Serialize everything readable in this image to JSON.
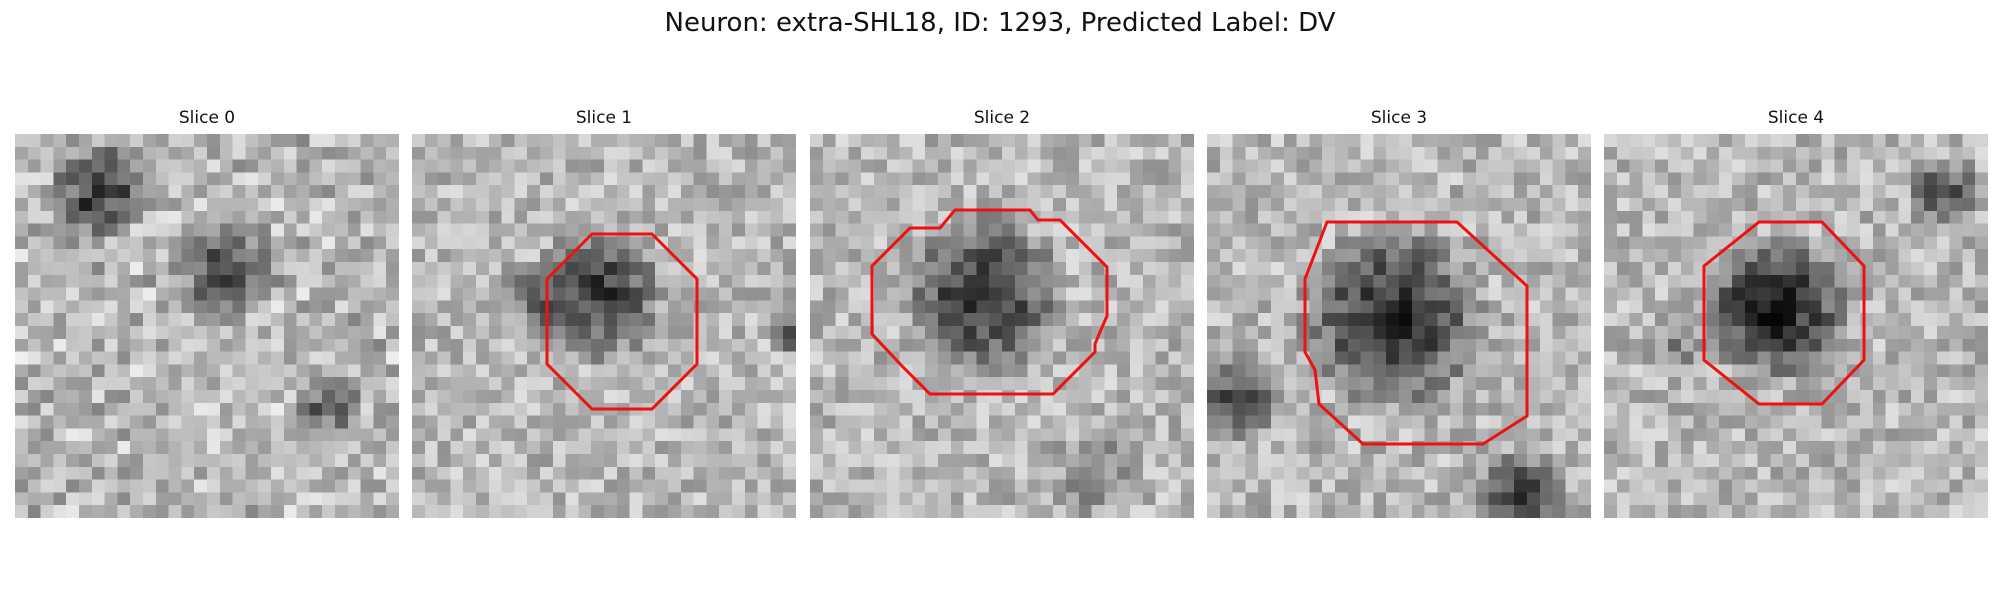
{
  "figure": {
    "title": "Neuron: extra-SHL18, ID: 1293, Predicted Label: DV"
  },
  "panels": [
    {
      "title": "Slice 0",
      "has_contour": false
    },
    {
      "title": "Slice 1",
      "has_contour": true
    },
    {
      "title": "Slice 2",
      "has_contour": true
    },
    {
      "title": "Slice 3",
      "has_contour": true
    },
    {
      "title": "Slice 4",
      "has_contour": true
    }
  ],
  "colors": {
    "contour": "#ee1111",
    "background": "#ffffff"
  }
}
